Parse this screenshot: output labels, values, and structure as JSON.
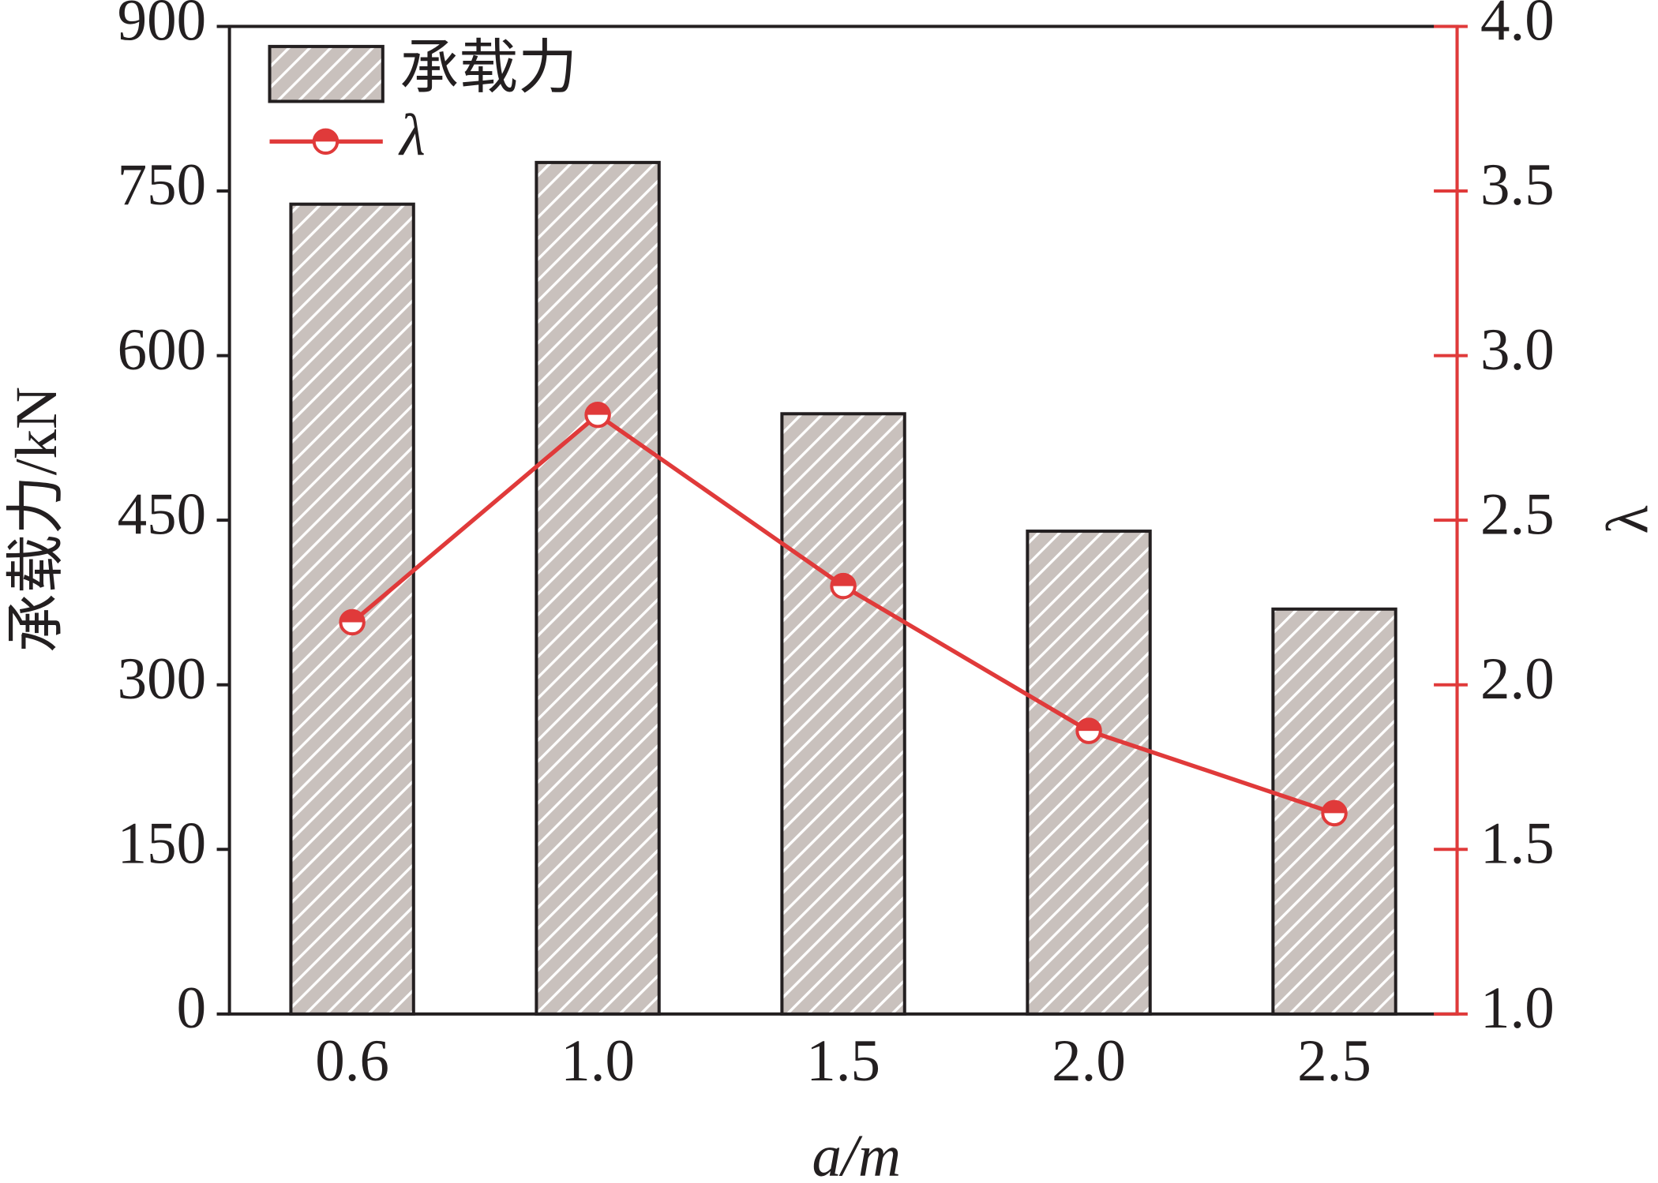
{
  "chart_data": {
    "type": "bar",
    "categories": [
      "0.6",
      "1.0",
      "1.5",
      "2.0",
      "2.5"
    ],
    "x_label": "a/m",
    "y_label": "承载力/kN",
    "y2_label": "λ",
    "ylim": [
      0,
      900
    ],
    "yticks": [
      0,
      150,
      300,
      450,
      600,
      750,
      900
    ],
    "y2lim": [
      1,
      4
    ],
    "y2ticks": [
      {
        "value": 1,
        "label": "1.0"
      },
      1.5,
      {
        "value": 2,
        "label": "2.0"
      },
      2.5,
      {
        "value": 3,
        "label": "3.0"
      },
      3.5,
      {
        "value": 4,
        "label": "4.0"
      }
    ],
    "series": [
      {
        "name": "承载力",
        "type": "bar",
        "color": "#c9c1bd",
        "values": [
          738,
          776,
          547,
          440,
          369
        ]
      },
      {
        "name": "λ",
        "type": "line",
        "axis": "y2",
        "color": "#e03a3a",
        "values": [
          2.19,
          2.82,
          2.3,
          1.86,
          1.61
        ]
      }
    ],
    "legend": "upper-left"
  }
}
